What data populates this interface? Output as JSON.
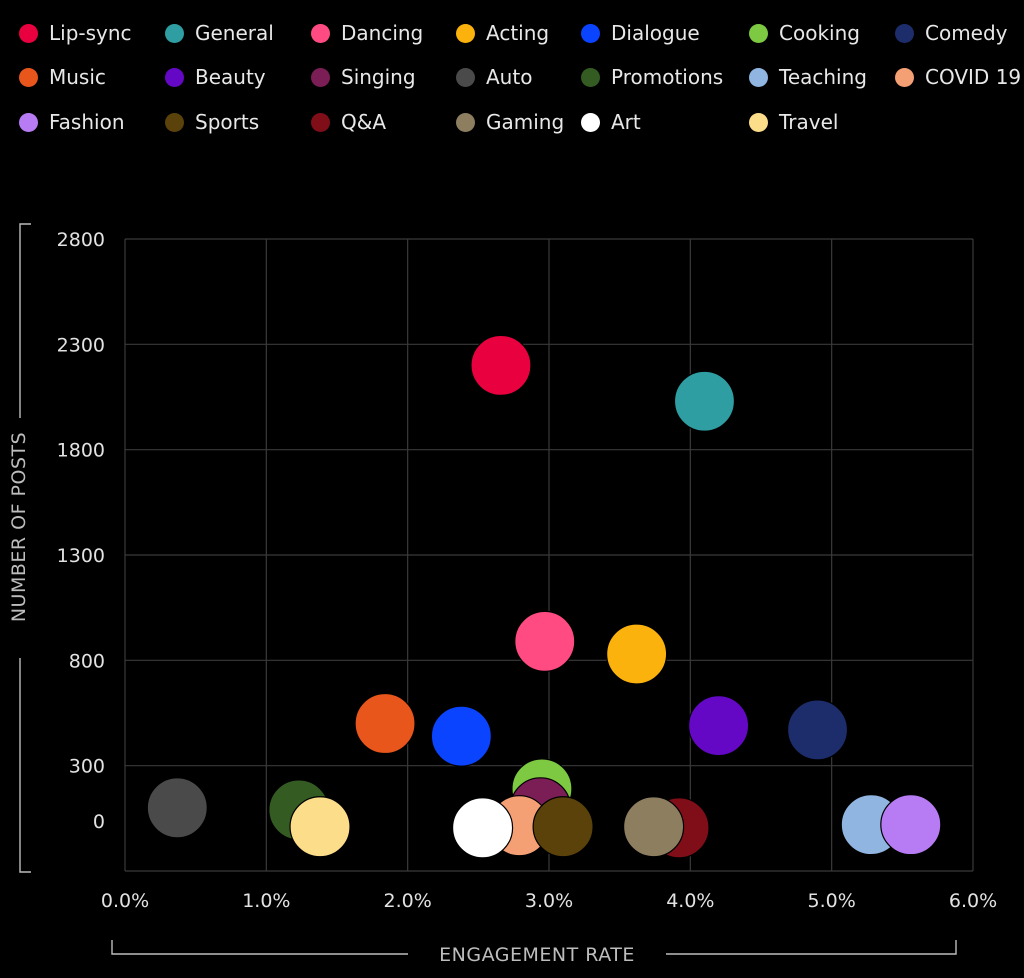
{
  "chart_data": {
    "type": "scatter",
    "xlabel": "ENGAGEMENT RATE",
    "ylabel": "NUMBER OF POSTS",
    "xlim": [
      0,
      6
    ],
    "ylim": [
      -200,
      2800
    ],
    "x_ticks": [
      "0.0%",
      "1.0%",
      "2.0%",
      "3.0%",
      "4.0%",
      "5.0%",
      "6.0%"
    ],
    "x_tick_values": [
      0,
      1,
      2,
      3,
      4,
      5,
      6
    ],
    "y_ticks": [
      "2800",
      "2300",
      "1800",
      "1300",
      "800",
      "300",
      "0"
    ],
    "y_tick_values": [
      2800,
      2300,
      1800,
      1300,
      800,
      300,
      0
    ],
    "y_gridlines": [
      2800,
      2300,
      1800,
      1300,
      800,
      300
    ],
    "legend_position": "top",
    "series": [
      {
        "name": "Lip-sync",
        "color": "#E8003F",
        "x": 2.66,
        "y": 2200
      },
      {
        "name": "General",
        "color": "#2E9EA3",
        "x": 4.1,
        "y": 2030
      },
      {
        "name": "Dancing",
        "color": "#FF4B82",
        "x": 2.97,
        "y": 890
      },
      {
        "name": "Acting",
        "color": "#FBB20C",
        "x": 3.62,
        "y": 830
      },
      {
        "name": "Dialogue",
        "color": "#0A44FF",
        "x": 2.38,
        "y": 440
      },
      {
        "name": "Cooking",
        "color": "#7DC942",
        "x": 2.95,
        "y": 190
      },
      {
        "name": "Comedy",
        "color": "#1D2C6B",
        "x": 4.9,
        "y": 470
      },
      {
        "name": "Music",
        "color": "#E8561C",
        "x": 1.84,
        "y": 500
      },
      {
        "name": "Beauty",
        "color": "#6408C6",
        "x": 4.2,
        "y": 490
      },
      {
        "name": "Singing",
        "color": "#7A1E55",
        "x": 2.94,
        "y": 100
      },
      {
        "name": "Auto",
        "color": "#4A4A4A",
        "x": 0.37,
        "y": 100
      },
      {
        "name": "Promotions",
        "color": "#345C22",
        "x": 1.23,
        "y": 90
      },
      {
        "name": "Teaching",
        "color": "#8FB5E0",
        "x": 5.28,
        "y": 20
      },
      {
        "name": "COVID 19",
        "color": "#F4A074",
        "x": 2.79,
        "y": 15
      },
      {
        "name": "Fashion",
        "color": "#B77BF4",
        "x": 5.56,
        "y": 20
      },
      {
        "name": "Sports",
        "color": "#5A420A",
        "x": 3.1,
        "y": 10
      },
      {
        "name": "Q&A",
        "color": "#7F0E18",
        "x": 3.92,
        "y": 5
      },
      {
        "name": "Gaming",
        "color": "#8E7E60",
        "x": 3.74,
        "y": 10
      },
      {
        "name": "Art",
        "color": "#FFFFFF",
        "x": 2.53,
        "y": 5
      },
      {
        "name": "Travel",
        "color": "#FBDD8A",
        "x": 1.38,
        "y": 10
      }
    ]
  }
}
